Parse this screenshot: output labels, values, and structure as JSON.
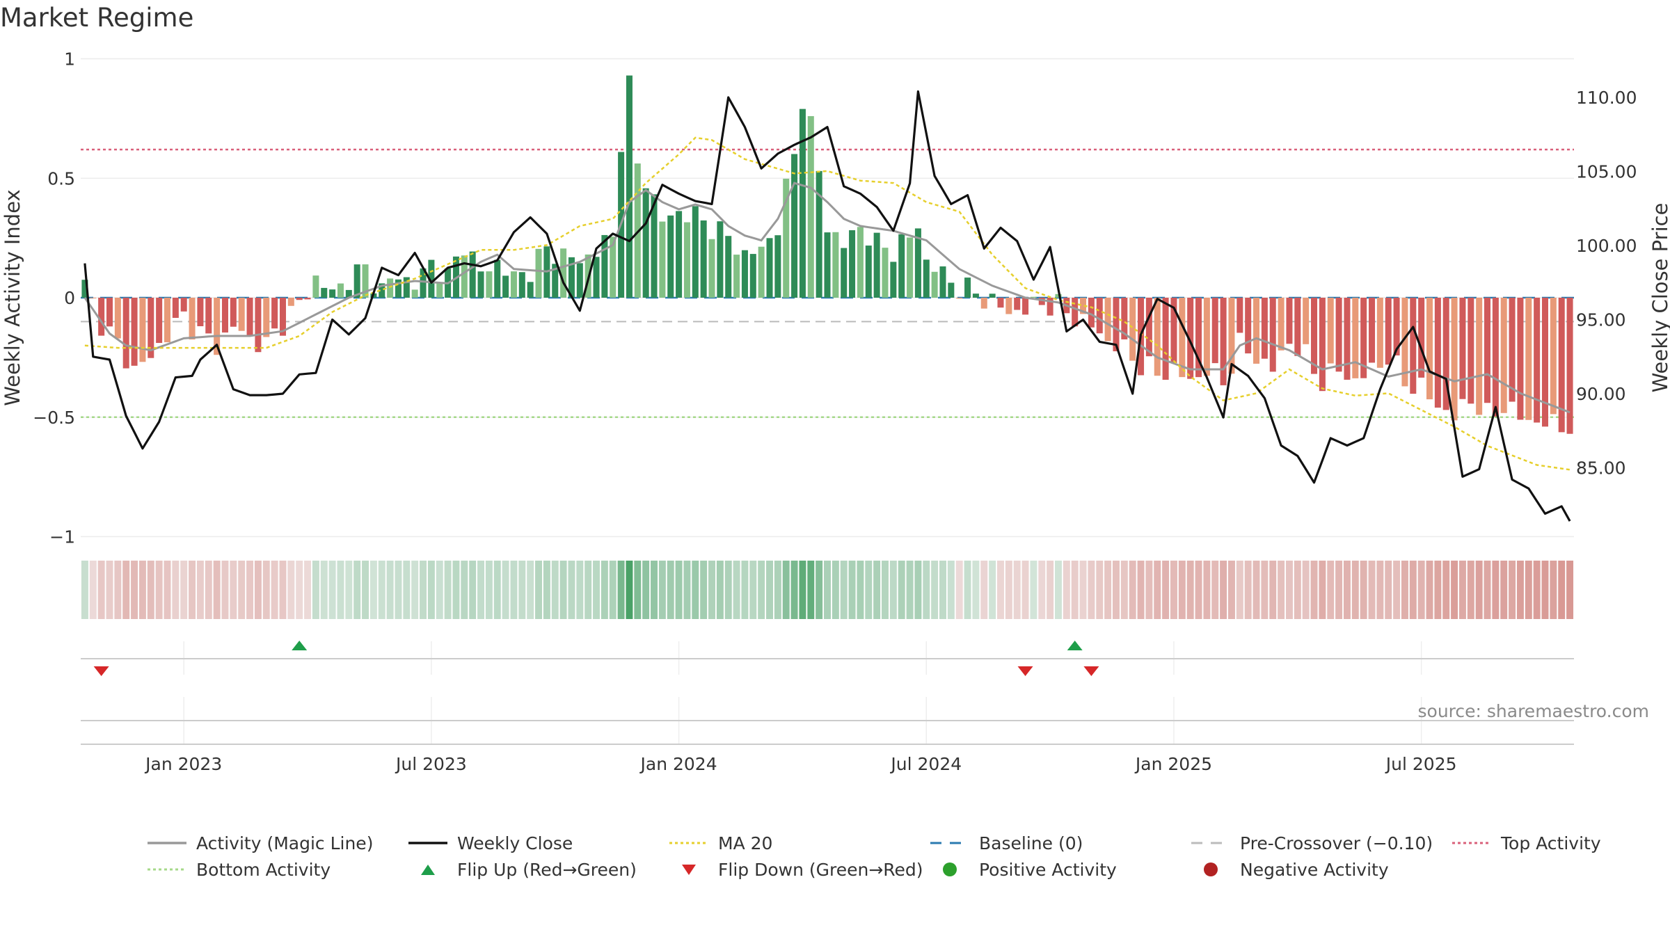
{
  "title": "Market Regime",
  "source": "source: sharemaestro.com",
  "colors": {
    "pos_dark": "#2e8b57",
    "pos_light": "#82c085",
    "neg_dark": "#d05a5a",
    "neg_light": "#e89a78",
    "magic_line": "#999999",
    "close": "#111111",
    "ma20": "#e6cf2c",
    "baseline": "#2a7ab0",
    "pre_crossover": "#bbbbbb",
    "top_activity": "#d9607a",
    "bottom_activity": "#a6d98a",
    "flip_up": "#1e9e4a",
    "flip_down": "#d62728",
    "positive_activity": "#2ca02c",
    "negative_activity": "#b22222"
  },
  "chart_data": {
    "type": "bar",
    "title": "Market Regime",
    "ylabel_left": "Weekly Activity Index",
    "ylabel_right": "Weekly Close Price",
    "yticks_left": [
      "1",
      "0.5",
      "0",
      "−0.5",
      "−1"
    ],
    "yticks_left_values": [
      1,
      0.5,
      0,
      -0.5,
      -1
    ],
    "yticks_right": [
      "110.00",
      "105.00",
      "100.00",
      "95.00",
      "90.00",
      "85.00"
    ],
    "yticks_right_values": [
      110,
      105,
      100,
      95,
      90,
      85
    ],
    "xticks": [
      "Jan 2023",
      "Jul 2023",
      "Jan 2024",
      "Jul 2024",
      "Jan 2025",
      "Jul 2025"
    ],
    "xticks_week": [
      12,
      42,
      72,
      102,
      132,
      162
    ],
    "ylim_left": [
      -1,
      1
    ],
    "ylim_right": [
      81,
      113.5
    ],
    "n_weeks": 181,
    "top_activity": 0.62,
    "bottom_activity": -0.5,
    "baseline": 0,
    "pre_crossover": -0.1,
    "activity_knots": [
      [
        0,
        0.05
      ],
      [
        2,
        -0.1
      ],
      [
        4,
        -0.2
      ],
      [
        6,
        -0.3
      ],
      [
        8,
        -0.25
      ],
      [
        10,
        -0.15
      ],
      [
        12,
        -0.08
      ],
      [
        14,
        -0.15
      ],
      [
        16,
        -0.2
      ],
      [
        18,
        -0.12
      ],
      [
        20,
        -0.17
      ],
      [
        22,
        -0.2
      ],
      [
        24,
        -0.1
      ],
      [
        26,
        -0.03
      ],
      [
        28,
        0.08
      ],
      [
        30,
        0.02
      ],
      [
        32,
        0.08
      ],
      [
        34,
        0.12
      ],
      [
        36,
        0.03
      ],
      [
        38,
        0.1
      ],
      [
        40,
        0.05
      ],
      [
        42,
        0.15
      ],
      [
        44,
        0.08
      ],
      [
        46,
        0.23
      ],
      [
        48,
        0.1
      ],
      [
        50,
        0.15
      ],
      [
        52,
        0.08
      ],
      [
        54,
        0.12
      ],
      [
        56,
        0.2
      ],
      [
        58,
        0.18
      ],
      [
        60,
        0.15
      ],
      [
        62,
        0.2
      ],
      [
        64,
        0.25
      ],
      [
        66,
        0.6
      ],
      [
        68,
        0.5
      ],
      [
        70,
        0.32
      ],
      [
        72,
        0.36
      ],
      [
        74,
        0.34
      ],
      [
        76,
        0.3
      ],
      [
        78,
        0.25
      ],
      [
        80,
        0.18
      ],
      [
        82,
        0.2
      ],
      [
        84,
        0.3
      ],
      [
        86,
        0.6
      ],
      [
        88,
        0.75
      ],
      [
        90,
        0.3
      ],
      [
        92,
        0.22
      ],
      [
        94,
        0.3
      ],
      [
        96,
        0.22
      ],
      [
        98,
        0.2
      ],
      [
        100,
        0.25
      ],
      [
        102,
        0.15
      ],
      [
        104,
        0.1
      ],
      [
        106,
        0.04
      ],
      [
        108,
        0.02
      ],
      [
        110,
        -0.02
      ],
      [
        112,
        -0.06
      ],
      [
        114,
        -0.05
      ],
      [
        116,
        -0.02
      ],
      [
        118,
        -0.04
      ],
      [
        120,
        -0.08
      ],
      [
        122,
        -0.12
      ],
      [
        124,
        -0.18
      ],
      [
        126,
        -0.22
      ],
      [
        128,
        -0.28
      ],
      [
        130,
        -0.32
      ],
      [
        132,
        -0.3
      ],
      [
        134,
        -0.35
      ],
      [
        136,
        -0.3
      ],
      [
        138,
        -0.35
      ],
      [
        140,
        -0.2
      ],
      [
        142,
        -0.25
      ],
      [
        144,
        -0.3
      ],
      [
        146,
        -0.18
      ],
      [
        148,
        -0.25
      ],
      [
        150,
        -0.35
      ],
      [
        152,
        -0.3
      ],
      [
        154,
        -0.35
      ],
      [
        156,
        -0.3
      ],
      [
        158,
        -0.25
      ],
      [
        160,
        -0.35
      ],
      [
        162,
        -0.38
      ],
      [
        164,
        -0.45
      ],
      [
        166,
        -0.5
      ],
      [
        168,
        -0.42
      ],
      [
        170,
        -0.5
      ],
      [
        172,
        -0.45
      ],
      [
        174,
        -0.5
      ],
      [
        176,
        -0.52
      ],
      [
        180,
        -0.54
      ]
    ],
    "activity_peaks": [
      [
        65,
        0.61
      ],
      [
        66,
        0.93
      ],
      [
        87,
        0.79
      ],
      [
        88,
        0.76
      ],
      [
        101,
        0.29
      ]
    ],
    "magic_knots": [
      [
        0,
        0.0
      ],
      [
        3,
        -0.15
      ],
      [
        5,
        -0.2
      ],
      [
        8,
        -0.22
      ],
      [
        12,
        -0.17
      ],
      [
        16,
        -0.16
      ],
      [
        20,
        -0.16
      ],
      [
        24,
        -0.14
      ],
      [
        28,
        -0.07
      ],
      [
        32,
        0.0
      ],
      [
        36,
        0.05
      ],
      [
        40,
        0.07
      ],
      [
        44,
        0.06
      ],
      [
        48,
        0.15
      ],
      [
        50,
        0.18
      ],
      [
        52,
        0.12
      ],
      [
        56,
        0.11
      ],
      [
        60,
        0.15
      ],
      [
        64,
        0.22
      ],
      [
        66,
        0.4
      ],
      [
        68,
        0.45
      ],
      [
        70,
        0.4
      ],
      [
        72,
        0.37
      ],
      [
        74,
        0.39
      ],
      [
        76,
        0.37
      ],
      [
        78,
        0.3
      ],
      [
        80,
        0.26
      ],
      [
        82,
        0.24
      ],
      [
        84,
        0.33
      ],
      [
        86,
        0.48
      ],
      [
        88,
        0.46
      ],
      [
        90,
        0.4
      ],
      [
        92,
        0.33
      ],
      [
        94,
        0.3
      ],
      [
        98,
        0.28
      ],
      [
        102,
        0.24
      ],
      [
        106,
        0.12
      ],
      [
        110,
        0.05
      ],
      [
        114,
        0.0
      ],
      [
        118,
        -0.02
      ],
      [
        122,
        -0.07
      ],
      [
        126,
        -0.15
      ],
      [
        130,
        -0.25
      ],
      [
        134,
        -0.3
      ],
      [
        138,
        -0.3
      ],
      [
        140,
        -0.2
      ],
      [
        142,
        -0.17
      ],
      [
        146,
        -0.22
      ],
      [
        150,
        -0.3
      ],
      [
        154,
        -0.27
      ],
      [
        158,
        -0.33
      ],
      [
        162,
        -0.3
      ],
      [
        166,
        -0.35
      ],
      [
        170,
        -0.32
      ],
      [
        174,
        -0.4
      ],
      [
        180,
        -0.48
      ]
    ],
    "ma20_knots": [
      [
        0,
        -0.2
      ],
      [
        4,
        -0.21
      ],
      [
        10,
        -0.21
      ],
      [
        16,
        -0.21
      ],
      [
        22,
        -0.21
      ],
      [
        26,
        -0.16
      ],
      [
        30,
        -0.06
      ],
      [
        34,
        0.01
      ],
      [
        40,
        0.08
      ],
      [
        44,
        0.14
      ],
      [
        48,
        0.2
      ],
      [
        52,
        0.2
      ],
      [
        56,
        0.22
      ],
      [
        60,
        0.3
      ],
      [
        64,
        0.33
      ],
      [
        68,
        0.48
      ],
      [
        72,
        0.6
      ],
      [
        74,
        0.67
      ],
      [
        76,
        0.66
      ],
      [
        80,
        0.58
      ],
      [
        84,
        0.54
      ],
      [
        86,
        0.52
      ],
      [
        90,
        0.53
      ],
      [
        94,
        0.49
      ],
      [
        98,
        0.48
      ],
      [
        102,
        0.4
      ],
      [
        106,
        0.36
      ],
      [
        110,
        0.18
      ],
      [
        114,
        0.04
      ],
      [
        118,
        -0.01
      ],
      [
        122,
        -0.04
      ],
      [
        126,
        -0.1
      ],
      [
        130,
        -0.2
      ],
      [
        134,
        -0.33
      ],
      [
        138,
        -0.43
      ],
      [
        142,
        -0.4
      ],
      [
        146,
        -0.3
      ],
      [
        150,
        -0.38
      ],
      [
        154,
        -0.41
      ],
      [
        158,
        -0.4
      ],
      [
        162,
        -0.47
      ],
      [
        166,
        -0.54
      ],
      [
        170,
        -0.62
      ],
      [
        176,
        -0.7
      ],
      [
        180,
        -0.72
      ]
    ],
    "close_knots": [
      [
        0,
        98.8
      ],
      [
        1,
        92.5
      ],
      [
        3,
        92.3
      ],
      [
        5,
        88.5
      ],
      [
        7,
        86.3
      ],
      [
        9,
        88.1
      ],
      [
        11,
        91.1
      ],
      [
        13,
        91.2
      ],
      [
        14,
        92.3
      ],
      [
        16,
        93.3
      ],
      [
        18,
        90.3
      ],
      [
        20,
        89.9
      ],
      [
        22,
        89.9
      ],
      [
        24,
        90.0
      ],
      [
        26,
        91.3
      ],
      [
        28,
        91.4
      ],
      [
        30,
        95.0
      ],
      [
        32,
        94.0
      ],
      [
        34,
        95.1
      ],
      [
        36,
        98.5
      ],
      [
        38,
        98.0
      ],
      [
        40,
        99.5
      ],
      [
        42,
        97.5
      ],
      [
        44,
        98.5
      ],
      [
        46,
        98.8
      ],
      [
        48,
        98.6
      ],
      [
        50,
        99.0
      ],
      [
        52,
        100.9
      ],
      [
        54,
        101.9
      ],
      [
        56,
        100.8
      ],
      [
        58,
        97.5
      ],
      [
        60,
        95.6
      ],
      [
        62,
        99.8
      ],
      [
        64,
        100.8
      ],
      [
        66,
        100.3
      ],
      [
        68,
        101.5
      ],
      [
        70,
        104.1
      ],
      [
        72,
        103.5
      ],
      [
        74,
        103.0
      ],
      [
        76,
        102.8
      ],
      [
        78,
        110.0
      ],
      [
        80,
        108.0
      ],
      [
        82,
        105.2
      ],
      [
        84,
        106.2
      ],
      [
        86,
        106.8
      ],
      [
        88,
        107.3
      ],
      [
        90,
        108.0
      ],
      [
        92,
        104.0
      ],
      [
        94,
        103.5
      ],
      [
        96,
        102.6
      ],
      [
        98,
        101.0
      ],
      [
        100,
        104.2
      ],
      [
        101,
        110.4
      ],
      [
        103,
        104.7
      ],
      [
        105,
        102.8
      ],
      [
        107,
        103.4
      ],
      [
        109,
        99.8
      ],
      [
        111,
        101.2
      ],
      [
        113,
        100.3
      ],
      [
        115,
        97.7
      ],
      [
        117,
        99.9
      ],
      [
        119,
        94.2
      ],
      [
        121,
        95.0
      ],
      [
        123,
        93.5
      ],
      [
        125,
        93.3
      ],
      [
        127,
        90.0
      ],
      [
        128,
        94.0
      ],
      [
        130,
        96.4
      ],
      [
        132,
        95.8
      ],
      [
        134,
        93.5
      ],
      [
        136,
        91.1
      ],
      [
        138,
        88.4
      ],
      [
        139,
        92.0
      ],
      [
        141,
        91.2
      ],
      [
        143,
        89.7
      ],
      [
        145,
        86.5
      ],
      [
        147,
        85.8
      ],
      [
        149,
        84.0
      ],
      [
        151,
        87.0
      ],
      [
        153,
        86.5
      ],
      [
        155,
        87.0
      ],
      [
        157,
        90.3
      ],
      [
        159,
        93.0
      ],
      [
        161,
        94.5
      ],
      [
        163,
        91.5
      ],
      [
        165,
        91.0
      ],
      [
        167,
        84.4
      ],
      [
        169,
        84.9
      ],
      [
        171,
        89.1
      ],
      [
        173,
        84.2
      ],
      [
        175,
        83.6
      ],
      [
        177,
        81.9
      ],
      [
        179,
        82.4
      ],
      [
        180,
        81.4
      ]
    ],
    "flip_up_weeks": [
      26,
      120
    ],
    "flip_down_weeks": [
      2,
      114,
      122
    ],
    "legend": [
      {
        "label": "Activity (Magic Line)",
        "swatch": "line",
        "color_key": "magic_line"
      },
      {
        "label": "Weekly Close",
        "swatch": "line",
        "color_key": "close"
      },
      {
        "label": "MA 20",
        "swatch": "dotted",
        "color_key": "ma20"
      },
      {
        "label": "Baseline (0)",
        "swatch": "dashed",
        "color_key": "baseline"
      },
      {
        "label": "Pre-Crossover (−0.10)",
        "swatch": "dashed",
        "color_key": "pre_crossover"
      },
      {
        "label": "Top Activity",
        "swatch": "dotted",
        "color_key": "top_activity"
      },
      {
        "label": "Bottom Activity",
        "swatch": "dotted",
        "color_key": "bottom_activity"
      },
      {
        "label": "Flip Up (Red→Green)",
        "swatch": "tri-up",
        "color_key": "flip_up"
      },
      {
        "label": "Flip Down (Green→Red)",
        "swatch": "tri-down",
        "color_key": "flip_down"
      },
      {
        "label": "Positive Activity",
        "swatch": "circle",
        "color_key": "positive_activity"
      },
      {
        "label": "Negative Activity",
        "swatch": "circle",
        "color_key": "negative_activity"
      }
    ]
  }
}
